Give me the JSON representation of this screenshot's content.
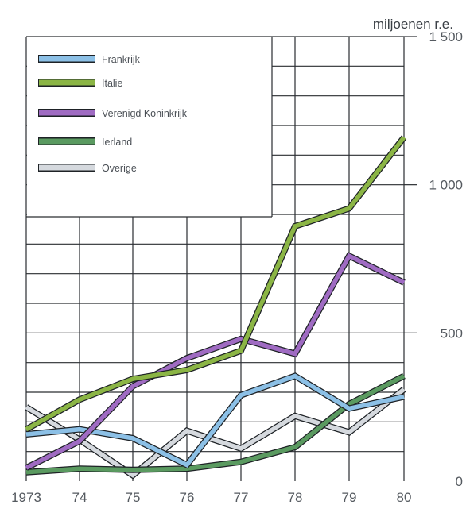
{
  "chart_data": {
    "type": "line",
    "title": "",
    "ylabel": "miljoenen r.e.",
    "xlabel": "",
    "x": [
      "1973",
      "74",
      "75",
      "76",
      "77",
      "78",
      "79",
      "80"
    ],
    "ylim": [
      0,
      1500
    ],
    "yticks": [
      "0",
      "500",
      "1 000",
      "1 500"
    ],
    "grid": true,
    "legend_position": "top-left",
    "series": [
      {
        "name": "Frankrijk",
        "color": "#8cc0e6",
        "values": [
          158,
          175,
          145,
          55,
          290,
          355,
          245,
          285
        ]
      },
      {
        "name": "Italie",
        "color": "#8bb545",
        "values": [
          175,
          275,
          345,
          375,
          440,
          860,
          920,
          1160
        ]
      },
      {
        "name": "Verenigd Koninkrijk",
        "color": "#9f6bc2",
        "values": [
          45,
          135,
          320,
          415,
          480,
          430,
          760,
          670
        ]
      },
      {
        "name": "Ierland",
        "color": "#5a9a60",
        "values": [
          30,
          42,
          38,
          42,
          65,
          115,
          260,
          355
        ]
      },
      {
        "name": "Overige",
        "color": "#d5d9de",
        "values": [
          250,
          140,
          20,
          170,
          110,
          220,
          165,
          310
        ]
      }
    ]
  }
}
